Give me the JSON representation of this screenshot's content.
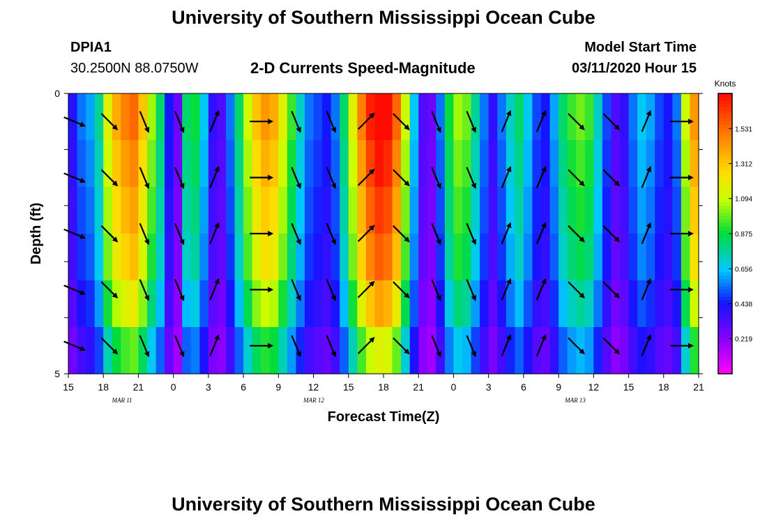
{
  "header": {
    "title": "University of Southern Mississippi Ocean Cube",
    "station": "DPIA1",
    "coords": "30.2500N 88.0750W",
    "subtitle": "2-D Currents Speed-Magnitude",
    "model_label": "Model Start Time",
    "model_time": "03/11/2020 Hour 15"
  },
  "footer": {
    "title": "University of Southern Mississippi Ocean Cube"
  },
  "chart_data": {
    "type": "heatmap",
    "title": "2-D Currents Speed-Magnitude",
    "xlabel": "Forecast Time(Z)",
    "ylabel": "Depth (ft)",
    "x_range_hours": [
      0,
      54
    ],
    "y_range_ft": [
      0,
      5
    ],
    "x_tick_labels": [
      "15",
      "18",
      "21",
      "0",
      "3",
      "6",
      "9",
      "12",
      "15",
      "18",
      "21",
      "0",
      "3",
      "6",
      "9",
      "12",
      "15",
      "18",
      "21"
    ],
    "y_tick_labels": [
      "0",
      "5"
    ],
    "date_labels": [
      "MAR 11",
      "MAR 12",
      "MAR 13"
    ],
    "colorbar": {
      "unit": "Knots",
      "min": 0.0,
      "max": 1.75,
      "ticks": [
        "1.531",
        "1.312",
        "1.094",
        "0.875",
        "0.656",
        "0.438",
        "0.219"
      ],
      "tick_values": [
        1.531,
        1.312,
        1.094,
        0.875,
        0.656,
        0.438,
        0.219
      ]
    },
    "depth_levels_ft": [
      0.5,
      1.5,
      2.5,
      3.5,
      4.5
    ],
    "column_speeds": [
      0.37,
      0.5,
      0.55,
      0.7,
      1.05,
      1.25,
      1.35,
      1.4,
      1.2,
      0.95,
      0.75,
      0.4,
      0.25,
      0.75,
      0.8,
      0.6,
      0.35,
      0.3,
      0.5,
      0.75,
      1.0,
      1.2,
      1.3,
      1.25,
      1.05,
      0.85,
      0.65,
      0.5,
      0.45,
      0.4,
      0.5,
      0.75,
      1.05,
      1.35,
      1.55,
      1.65,
      1.6,
      1.4,
      1.0,
      0.6,
      0.3,
      0.25,
      0.5,
      0.8,
      0.95,
      0.9,
      0.7,
      0.5,
      0.35,
      0.5,
      0.65,
      0.75,
      0.6,
      0.45,
      0.4,
      0.55,
      0.75,
      0.85,
      0.9,
      0.85,
      0.65,
      0.45,
      0.3,
      0.35,
      0.5,
      0.6,
      0.55,
      0.45,
      0.4,
      0.5,
      1.0,
      1.3
    ],
    "depth_factors": [
      1.1,
      1.05,
      1.0,
      0.95,
      0.85,
      0.7
    ],
    "arrows": [
      {
        "hour": 0.5,
        "dir": "ESE"
      },
      {
        "hour": 3.5,
        "dir": "SE"
      },
      {
        "hour": 6.5,
        "dir": "SSE"
      },
      {
        "hour": 9.5,
        "dir": "SSE"
      },
      {
        "hour": 12.5,
        "dir": "NNE"
      },
      {
        "hour": 16.5,
        "dir": "E"
      },
      {
        "hour": 19.5,
        "dir": "SSE"
      },
      {
        "hour": 22.5,
        "dir": "SSE"
      },
      {
        "hour": 25.5,
        "dir": "NE"
      },
      {
        "hour": 28.5,
        "dir": "SE"
      },
      {
        "hour": 31.5,
        "dir": "SSE"
      },
      {
        "hour": 34.5,
        "dir": "SSE"
      },
      {
        "hour": 37.5,
        "dir": "NNE"
      },
      {
        "hour": 40.5,
        "dir": "NNE"
      },
      {
        "hour": 43.5,
        "dir": "SE"
      },
      {
        "hour": 46.5,
        "dir": "SE"
      },
      {
        "hour": 49.5,
        "dir": "NNE"
      },
      {
        "hour": 52.5,
        "dir": "E"
      }
    ]
  }
}
